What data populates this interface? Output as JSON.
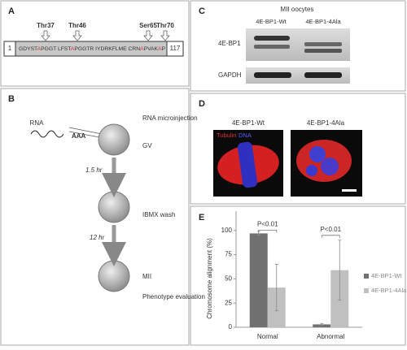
{
  "panel_a": {
    "label": "A",
    "sites": [
      "Thr37",
      "Thr46",
      "Ser65",
      "Thr70"
    ],
    "start": "1",
    "end": "117",
    "sequence": [
      {
        "text": "GDYST",
        "color": "#333333"
      },
      {
        "text": "A",
        "color": "#e0303a"
      },
      {
        "text": "PGGT LFST",
        "color": "#333333"
      },
      {
        "text": "A",
        "color": "#e0303a"
      },
      {
        "text": "PGGTR IYDRKFLME CRN",
        "color": "#333333"
      },
      {
        "text": "A",
        "color": "#e0303a"
      },
      {
        "text": "PVAK",
        "color": "#333333"
      },
      {
        "text": "A",
        "color": "#e0303a"
      },
      {
        "text": "P",
        "color": "#333333"
      }
    ]
  },
  "panel_b": {
    "label": "B",
    "rna": "RNA",
    "polya": "AAA",
    "steps": [
      "RNA microinjection",
      "GV",
      "IBMX wash",
      "MII",
      "Phenotype evaluation"
    ],
    "times": [
      "1.5 hr",
      "12 hr"
    ]
  },
  "panel_c": {
    "label": "C",
    "header": "MII oocytes",
    "lanes": [
      "4E-BP1-Wt",
      "4E-BP1-4Ala"
    ],
    "rows": [
      "4E-BP1",
      "GAPDH"
    ]
  },
  "panel_d": {
    "label": "D",
    "images": [
      "4E-BP1-Wt",
      "4E-BP1-4Ala"
    ],
    "stain_1": "Tubulin",
    "stain_2": "DNA"
  },
  "chart_data": {
    "type": "bar",
    "panel_label": "E",
    "y_label": "Chromosome alignment (%)",
    "categories": [
      "Normal",
      "Abnormal"
    ],
    "series": [
      {
        "name": "4E-BP1-Wt",
        "color": "#707070",
        "values": [
          97,
          3
        ],
        "errors": [
          2,
          1
        ]
      },
      {
        "name": "4E-BP1-4Ala",
        "color": "#c0c0c0",
        "values": [
          41,
          59
        ],
        "errors": [
          24,
          31
        ]
      }
    ],
    "annotations": [
      "P<0.01",
      "P<0.01"
    ],
    "ylim": [
      0,
      120
    ],
    "yticks": [
      0,
      25,
      50,
      75,
      100
    ]
  }
}
